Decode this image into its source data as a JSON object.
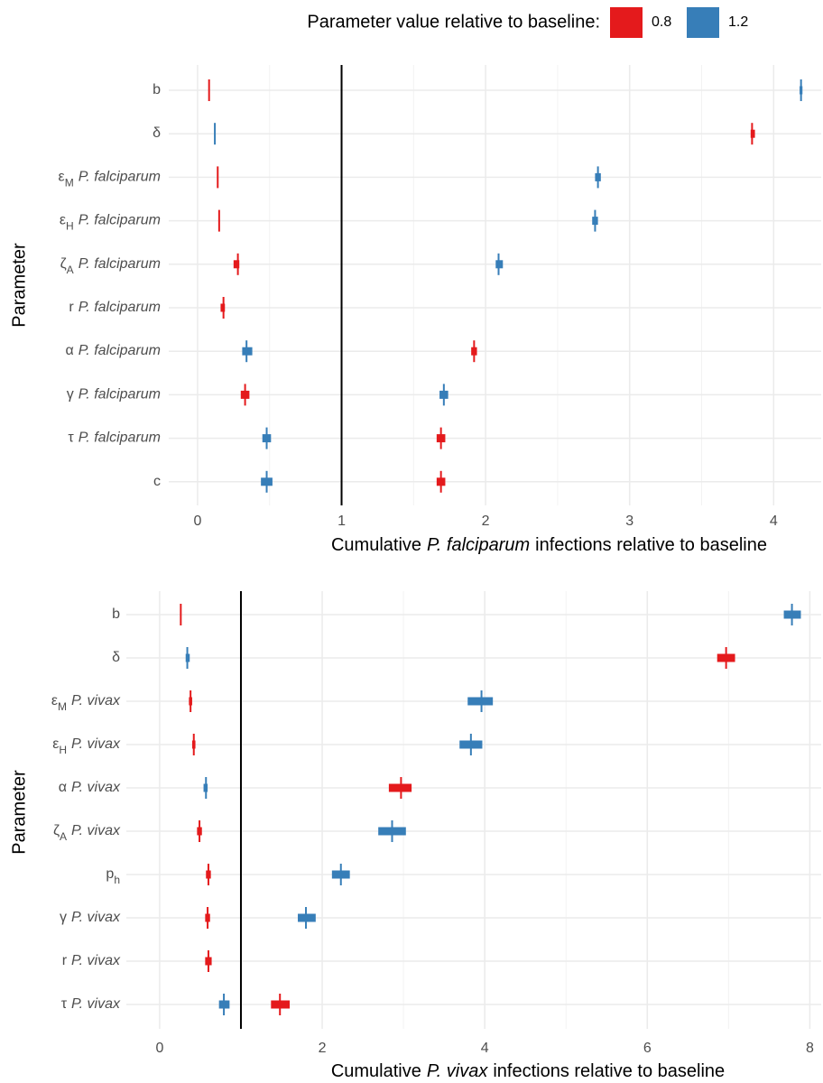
{
  "chart_data": [
    {
      "type": "interval",
      "legend_title": "Parameter value relative to baseline:",
      "xlabel": {
        "before": "Cumulative",
        "italic": "P. falciparum",
        "after": "infections relative to baseline"
      },
      "ylabel": "Parameter",
      "refline": 1,
      "xlim": [
        -0.2,
        4.33
      ],
      "xticks": [
        0,
        1,
        2,
        3,
        4
      ],
      "grid": true,
      "categories": [
        {
          "text": "b"
        },
        {
          "text": "δ"
        },
        {
          "text": "ε",
          "sub": "M",
          "italic": "P. falciparum"
        },
        {
          "text": "ε",
          "sub": "H",
          "italic": "P. falciparum"
        },
        {
          "text": "ζ",
          "sub": "A",
          "italic": "P. falciparum"
        },
        {
          "text": "r",
          "italic": "P. falciparum"
        },
        {
          "text": "α",
          "italic": "P. falciparum"
        },
        {
          "text": "γ",
          "italic": "P. falciparum"
        },
        {
          "text": "τ",
          "italic": "P. falciparum"
        },
        {
          "text": "c"
        }
      ],
      "series": [
        {
          "name": "0.8",
          "color": "#e41a1c",
          "values": [
            0.08,
            3.85,
            0.14,
            0.15,
            0.28,
            0.18,
            1.92,
            0.33,
            1.69,
            1.69
          ],
          "low": [
            0.08,
            3.84,
            0.14,
            0.15,
            0.25,
            0.16,
            1.9,
            0.3,
            1.66,
            1.66
          ],
          "high": [
            0.08,
            3.87,
            0.14,
            0.15,
            0.29,
            0.19,
            1.94,
            0.36,
            1.72,
            1.72
          ]
        },
        {
          "name": "1.2",
          "color": "#377eb8",
          "values": [
            4.19,
            0.12,
            2.78,
            2.76,
            2.09,
            null,
            0.34,
            1.71,
            0.48,
            0.48
          ],
          "low": [
            4.18,
            0.12,
            2.76,
            2.74,
            2.07,
            null,
            0.31,
            1.68,
            0.45,
            0.44
          ],
          "high": [
            4.2,
            0.12,
            2.8,
            2.78,
            2.12,
            null,
            0.38,
            1.74,
            0.51,
            0.52
          ]
        }
      ]
    },
    {
      "type": "interval",
      "xlabel": {
        "before": "Cumulative",
        "italic": "P. vivax",
        "after": "infections relative to baseline"
      },
      "ylabel": "Parameter",
      "refline": 1,
      "xlim": [
        -0.41,
        8.14
      ],
      "xticks": [
        0,
        2,
        4,
        6,
        8
      ],
      "grid": true,
      "categories": [
        {
          "text": "b"
        },
        {
          "text": "δ"
        },
        {
          "text": "ε",
          "sub": "M",
          "italic": "P. vivax"
        },
        {
          "text": "ε",
          "sub": "H",
          "italic": "P. vivax"
        },
        {
          "text": "α",
          "italic": "P. vivax"
        },
        {
          "text": "ζ",
          "sub": "A",
          "italic": "P. vivax"
        },
        {
          "text": "p",
          "sub": "h"
        },
        {
          "text": "γ",
          "italic": "P. vivax"
        },
        {
          "text": "r",
          "italic": "P. vivax"
        },
        {
          "text": "τ",
          "italic": "P. vivax"
        }
      ],
      "series": [
        {
          "name": "0.8",
          "color": "#e41a1c",
          "values": [
            0.26,
            6.97,
            0.38,
            0.42,
            2.97,
            0.49,
            0.6,
            0.59,
            0.6,
            1.48
          ],
          "low": [
            0.26,
            6.86,
            0.36,
            0.4,
            2.82,
            0.46,
            0.57,
            0.56,
            0.56,
            1.37
          ],
          "high": [
            0.26,
            7.08,
            0.4,
            0.44,
            3.1,
            0.52,
            0.63,
            0.62,
            0.64,
            1.6
          ]
        },
        {
          "name": "1.2",
          "color": "#377eb8",
          "values": [
            7.78,
            0.34,
            3.96,
            3.83,
            0.57,
            2.86,
            2.23,
            1.8,
            null,
            0.79
          ],
          "low": [
            7.68,
            0.32,
            3.79,
            3.69,
            0.54,
            2.69,
            2.12,
            1.7,
            null,
            0.73
          ],
          "high": [
            7.89,
            0.37,
            4.1,
            3.97,
            0.59,
            3.03,
            2.34,
            1.92,
            null,
            0.86
          ]
        }
      ]
    }
  ]
}
